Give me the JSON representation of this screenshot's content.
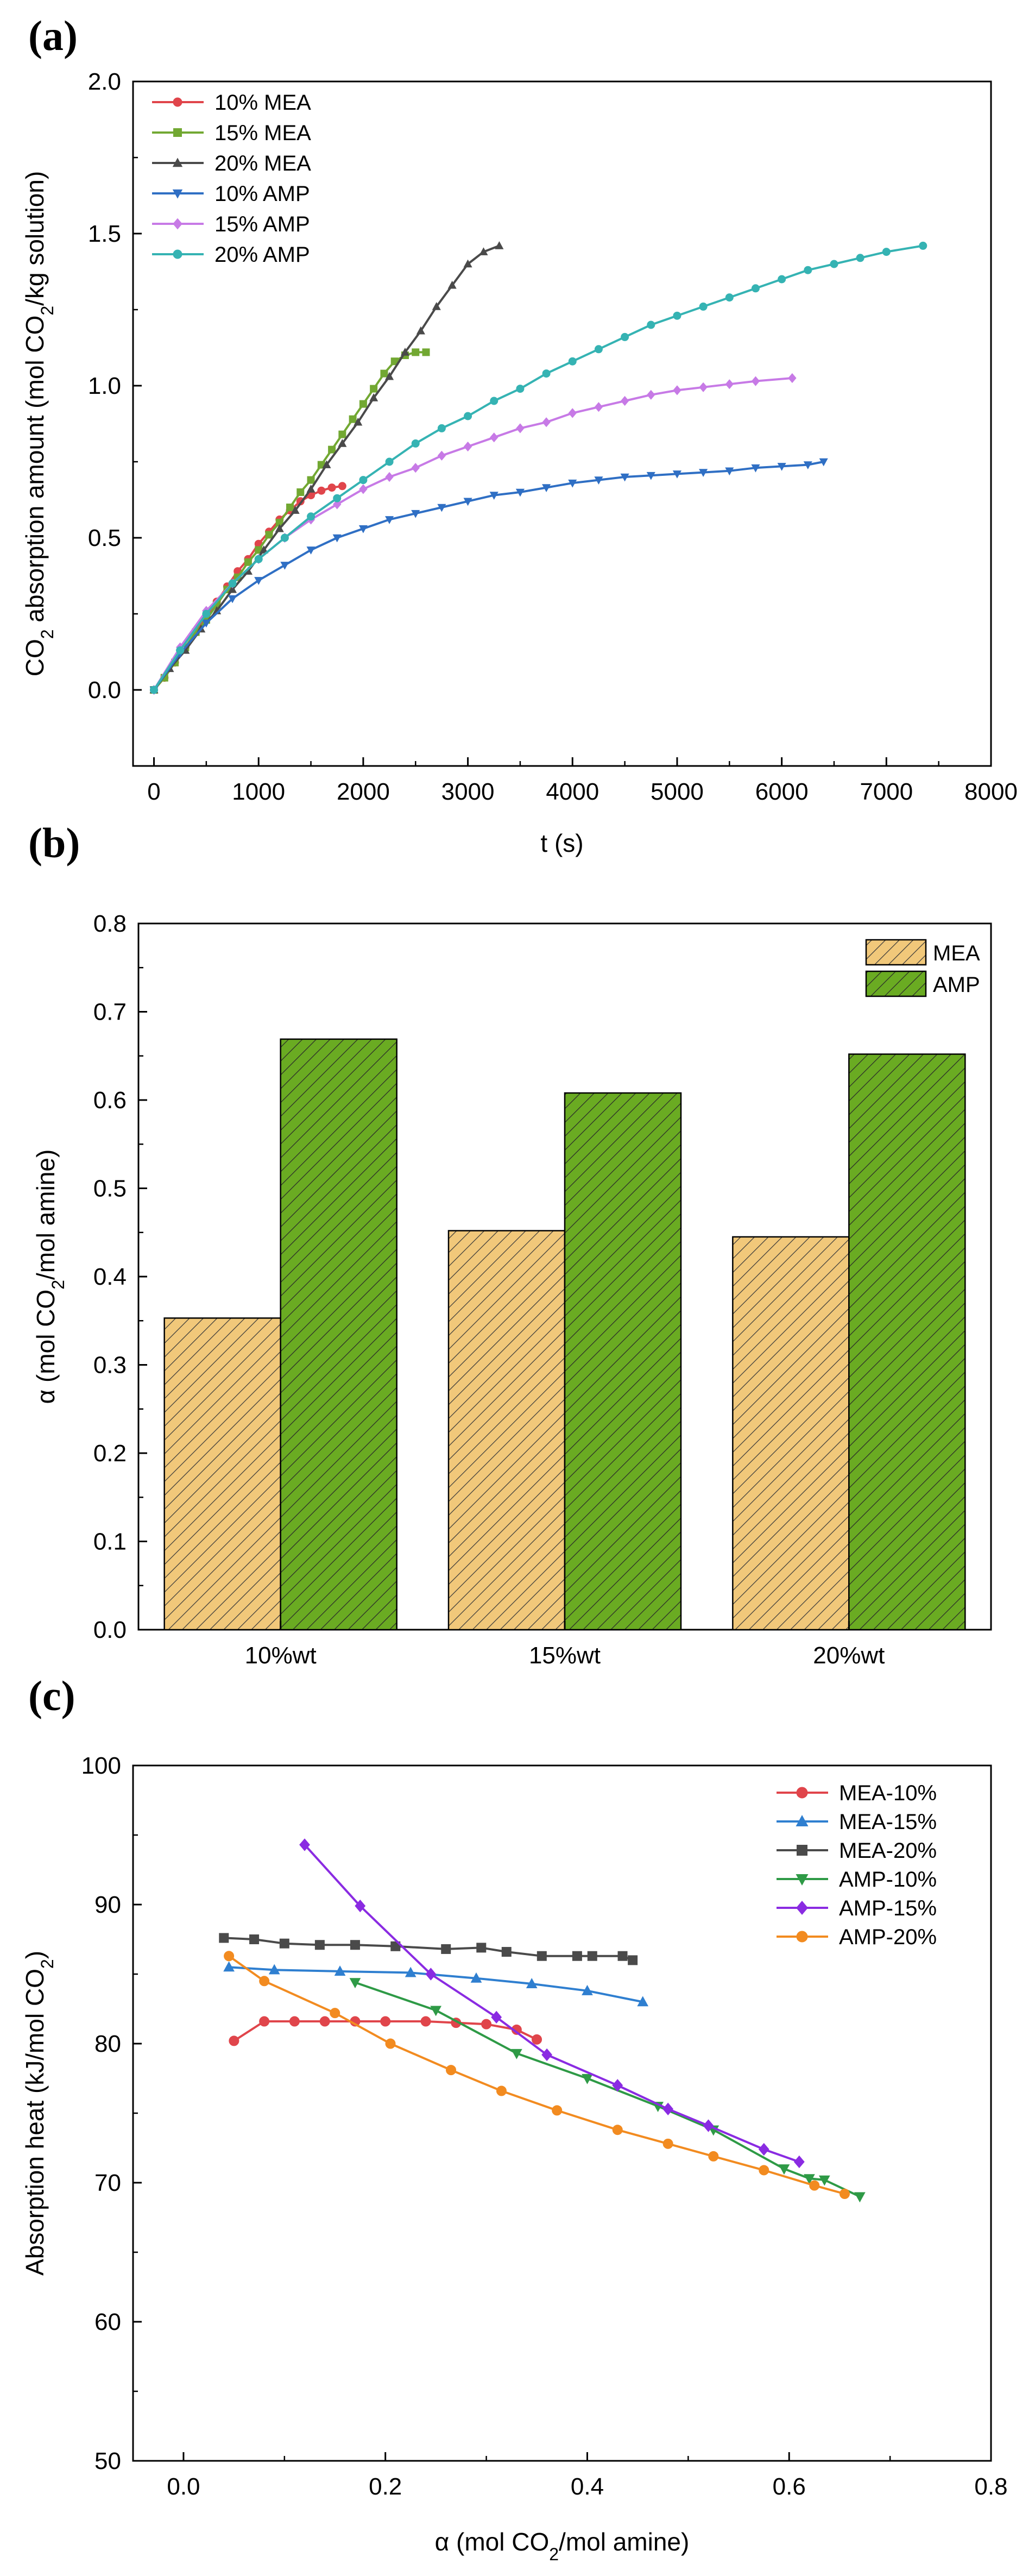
{
  "chart_data": [
    {
      "panel": "(a)",
      "type": "line",
      "title": "",
      "xlabel": "t (s)",
      "ylabel": {
        "pre": "CO",
        "sub": "2",
        "post": " absorption amount (mol CO",
        "sub2": "2",
        "post2": "/kg solution)"
      },
      "xlim": [
        -200,
        8000
      ],
      "ylim": [
        -0.25,
        2.0
      ],
      "xticks": [
        0,
        1000,
        2000,
        3000,
        4000,
        5000,
        6000,
        7000,
        8000
      ],
      "yticks": [
        0.0,
        0.5,
        1.0,
        1.5,
        2.0
      ],
      "xtick_labels": [
        "0",
        "1000",
        "2000",
        "3000",
        "4000",
        "5000",
        "6000",
        "7000",
        "8000"
      ],
      "ytick_labels": [
        "0.0",
        "0.5",
        "1.0",
        "1.5",
        "2.0"
      ],
      "legend_position": "top-left",
      "series": [
        {
          "name": "10% MEA",
          "color": "#e0454b",
          "marker": "circle",
          "x": [
            0,
            100,
            200,
            300,
            400,
            500,
            600,
            700,
            800,
            900,
            1000,
            1100,
            1200,
            1300,
            1400,
            1500,
            1600,
            1700,
            1800
          ],
          "y": [
            0,
            0.04,
            0.09,
            0.14,
            0.19,
            0.24,
            0.29,
            0.34,
            0.39,
            0.43,
            0.48,
            0.52,
            0.56,
            0.59,
            0.62,
            0.64,
            0.655,
            0.665,
            0.67
          ]
        },
        {
          "name": "15% MEA",
          "color": "#72a832",
          "marker": "square",
          "x": [
            0,
            100,
            200,
            300,
            400,
            500,
            600,
            700,
            800,
            900,
            1000,
            1100,
            1200,
            1300,
            1400,
            1500,
            1600,
            1700,
            1800,
            1900,
            2000,
            2100,
            2200,
            2300,
            2400,
            2500,
            2600
          ],
          "y": [
            0,
            0.04,
            0.09,
            0.14,
            0.19,
            0.23,
            0.28,
            0.33,
            0.37,
            0.42,
            0.46,
            0.51,
            0.55,
            0.6,
            0.65,
            0.69,
            0.74,
            0.79,
            0.84,
            0.89,
            0.94,
            0.99,
            1.04,
            1.08,
            1.1,
            1.11,
            1.11
          ]
        },
        {
          "name": "20% MEA",
          "color": "#4a4a4a",
          "marker": "triangle-up",
          "x": [
            0,
            150,
            300,
            450,
            600,
            750,
            900,
            1050,
            1200,
            1350,
            1500,
            1650,
            1800,
            1950,
            2100,
            2250,
            2400,
            2550,
            2700,
            2850,
            3000,
            3150,
            3300
          ],
          "y": [
            0,
            0.07,
            0.13,
            0.2,
            0.26,
            0.33,
            0.39,
            0.46,
            0.53,
            0.59,
            0.66,
            0.74,
            0.81,
            0.88,
            0.96,
            1.03,
            1.11,
            1.18,
            1.26,
            1.33,
            1.4,
            1.44,
            1.46
          ]
        },
        {
          "name": "10% AMP",
          "color": "#2f6fc4",
          "marker": "triangle-down",
          "x": [
            0,
            250,
            500,
            750,
            1000,
            1250,
            1500,
            1750,
            2000,
            2250,
            2500,
            2750,
            3000,
            3250,
            3500,
            3750,
            4000,
            4250,
            4500,
            4750,
            5000,
            5250,
            5500,
            5750,
            6000,
            6250,
            6400
          ],
          "y": [
            0,
            0.12,
            0.22,
            0.3,
            0.36,
            0.41,
            0.46,
            0.5,
            0.53,
            0.56,
            0.58,
            0.6,
            0.62,
            0.64,
            0.65,
            0.665,
            0.68,
            0.69,
            0.7,
            0.705,
            0.71,
            0.715,
            0.72,
            0.73,
            0.735,
            0.74,
            0.75
          ]
        },
        {
          "name": "15% AMP",
          "color": "#c77ae6",
          "marker": "diamond",
          "x": [
            0,
            250,
            500,
            750,
            1000,
            1250,
            1500,
            1750,
            2000,
            2250,
            2500,
            2750,
            3000,
            3250,
            3500,
            3750,
            4000,
            4250,
            4500,
            4750,
            5000,
            5250,
            5500,
            5750,
            6100
          ],
          "y": [
            0,
            0.14,
            0.26,
            0.35,
            0.43,
            0.5,
            0.56,
            0.61,
            0.66,
            0.7,
            0.73,
            0.77,
            0.8,
            0.83,
            0.86,
            0.88,
            0.91,
            0.93,
            0.95,
            0.97,
            0.985,
            0.995,
            1.005,
            1.015,
            1.025
          ]
        },
        {
          "name": "20% AMP",
          "color": "#35b3b3",
          "marker": "circle",
          "x": [
            0,
            250,
            500,
            750,
            1000,
            1250,
            1500,
            1750,
            2000,
            2250,
            2500,
            2750,
            3000,
            3250,
            3500,
            3750,
            4000,
            4250,
            4500,
            4750,
            5000,
            5250,
            5500,
            5750,
            6000,
            6250,
            6500,
            6750,
            7000,
            7350
          ],
          "y": [
            0,
            0.13,
            0.25,
            0.35,
            0.43,
            0.5,
            0.57,
            0.63,
            0.69,
            0.75,
            0.81,
            0.86,
            0.9,
            0.95,
            0.99,
            1.04,
            1.08,
            1.12,
            1.16,
            1.2,
            1.23,
            1.26,
            1.29,
            1.32,
            1.35,
            1.38,
            1.4,
            1.42,
            1.44,
            1.46
          ]
        }
      ]
    },
    {
      "panel": "(b)",
      "type": "bar",
      "title": "",
      "xlabel": "",
      "ylabel": {
        "pre": "α (mol CO",
        "sub": "2",
        "post": "/mol amine)"
      },
      "categories": [
        "10%wt",
        "15%wt",
        "20%wt"
      ],
      "ylim": [
        0.0,
        0.8
      ],
      "yticks": [
        0.0,
        0.1,
        0.2,
        0.3,
        0.4,
        0.5,
        0.6,
        0.7,
        0.8
      ],
      "ytick_labels": [
        "0.0",
        "0.1",
        "0.2",
        "0.3",
        "0.4",
        "0.5",
        "0.6",
        "0.7",
        "0.8"
      ],
      "legend_position": "top-right",
      "series": [
        {
          "name": "MEA",
          "color": "#f1c87a",
          "hatch_color": "#3a3a3a",
          "values": [
            0.353,
            0.452,
            0.445
          ]
        },
        {
          "name": "AMP",
          "color": "#6aab22",
          "hatch_color": "#2a2a2a",
          "values": [
            0.669,
            0.608,
            0.652
          ]
        }
      ]
    },
    {
      "panel": "(c)",
      "type": "line",
      "title": "",
      "xlabel": {
        "pre": "α (mol CO",
        "sub": "2",
        "post": "/mol amine)"
      },
      "ylabel": {
        "pre": "Absorption heat (kJ/mol CO",
        "sub": "2",
        "post": ")"
      },
      "xlim": [
        -0.05,
        0.8
      ],
      "ylim": [
        50,
        100
      ],
      "xticks": [
        0.0,
        0.2,
        0.4,
        0.6,
        0.8
      ],
      "yticks": [
        50,
        60,
        70,
        80,
        90,
        100
      ],
      "xtick_labels": [
        "0.0",
        "0.2",
        "0.4",
        "0.6",
        "0.8"
      ],
      "ytick_labels": [
        "50",
        "60",
        "70",
        "80",
        "90",
        "100"
      ],
      "legend_position": "top-right",
      "series": [
        {
          "name": "MEA-10%",
          "color": "#e0454b",
          "marker": "circle",
          "x": [
            0.05,
            0.08,
            0.11,
            0.14,
            0.17,
            0.2,
            0.24,
            0.27,
            0.3,
            0.33,
            0.35
          ],
          "y": [
            80.2,
            81.6,
            81.6,
            81.6,
            81.6,
            81.6,
            81.6,
            81.5,
            81.4,
            81.0,
            80.3
          ]
        },
        {
          "name": "MEA-15%",
          "color": "#2f7fd0",
          "marker": "triangle-up",
          "x": [
            0.045,
            0.09,
            0.155,
            0.225,
            0.29,
            0.345,
            0.4,
            0.455
          ],
          "y": [
            85.5,
            85.3,
            85.2,
            85.1,
            84.7,
            84.3,
            83.8,
            83.0
          ]
        },
        {
          "name": "MEA-20%",
          "color": "#4a4a4a",
          "marker": "square",
          "x": [
            0.04,
            0.07,
            0.1,
            0.135,
            0.17,
            0.21,
            0.26,
            0.295,
            0.32,
            0.355,
            0.39,
            0.405,
            0.435,
            0.445
          ],
          "y": [
            87.6,
            87.5,
            87.2,
            87.1,
            87.1,
            87.0,
            86.8,
            86.9,
            86.6,
            86.3,
            86.3,
            86.3,
            86.3,
            86.0
          ]
        },
        {
          "name": "AMP-10%",
          "color": "#2e9a46",
          "marker": "triangle-down",
          "x": [
            0.17,
            0.25,
            0.33,
            0.4,
            0.47,
            0.525,
            0.595,
            0.62,
            0.635,
            0.67
          ],
          "y": [
            84.4,
            82.4,
            79.3,
            77.5,
            75.5,
            73.8,
            71.0,
            70.3,
            70.2,
            69.0
          ]
        },
        {
          "name": "AMP-15%",
          "color": "#8a2be2",
          "marker": "diamond",
          "x": [
            0.12,
            0.175,
            0.245,
            0.31,
            0.36,
            0.43,
            0.48,
            0.52,
            0.575,
            0.61
          ],
          "y": [
            94.3,
            89.9,
            85.0,
            81.9,
            79.2,
            77.0,
            75.3,
            74.1,
            72.4,
            71.5
          ]
        },
        {
          "name": "AMP-20%",
          "color": "#f28b20",
          "marker": "circle",
          "x": [
            0.045,
            0.08,
            0.15,
            0.205,
            0.265,
            0.315,
            0.37,
            0.43,
            0.48,
            0.525,
            0.575,
            0.625,
            0.655
          ],
          "y": [
            86.3,
            84.5,
            82.2,
            80.0,
            78.1,
            76.6,
            75.2,
            73.8,
            72.8,
            71.9,
            70.9,
            69.8,
            69.2
          ]
        }
      ]
    }
  ]
}
